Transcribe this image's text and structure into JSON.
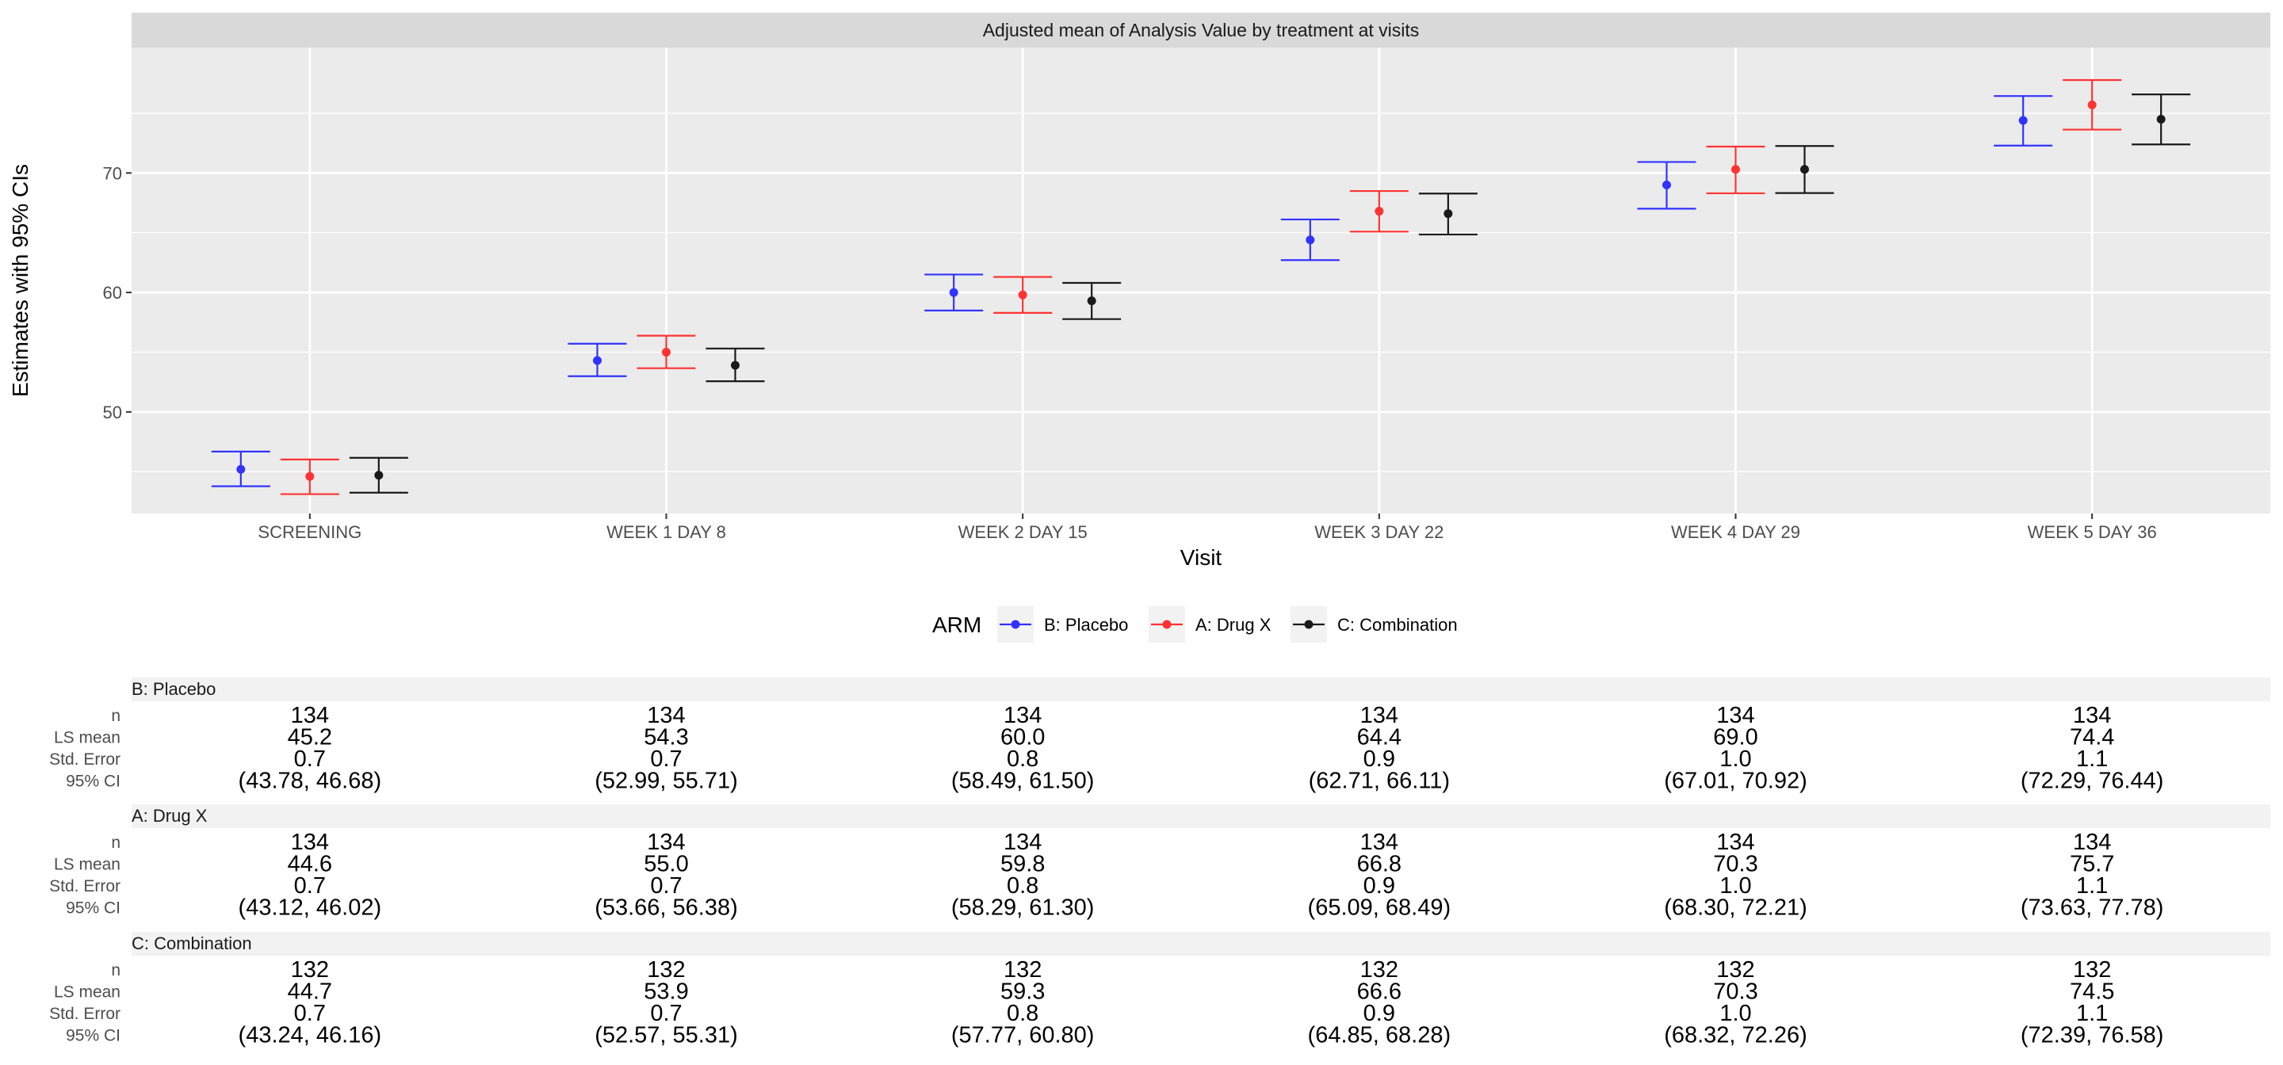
{
  "chart_data": {
    "type": "scatter",
    "title": "Adjusted mean of Analysis Value by treatment at visits",
    "xlabel": "Visit",
    "ylabel": "Estimates with 95% CIs",
    "categories": [
      "SCREENING",
      "WEEK 1 DAY 8",
      "WEEK 2 DAY 15",
      "WEEK 3 DAY 22",
      "WEEK 4 DAY 29",
      "WEEK 5 DAY 36"
    ],
    "ylim": [
      41.5,
      80.5
    ],
    "yticks": [
      50,
      60,
      70
    ],
    "grid": true,
    "legend": {
      "title": "ARM",
      "placement": "bottom"
    },
    "series": [
      {
        "name": "B: Placebo",
        "color": "#3333ff",
        "values": [
          45.2,
          54.3,
          60.0,
          64.4,
          69.0,
          74.4
        ],
        "lower": [
          43.78,
          52.99,
          58.49,
          62.71,
          67.01,
          72.29
        ],
        "upper": [
          46.68,
          55.71,
          61.5,
          66.11,
          70.92,
          76.44
        ]
      },
      {
        "name": "A: Drug X",
        "color": "#ff3333",
        "values": [
          44.6,
          55.0,
          59.8,
          66.8,
          70.3,
          75.7
        ],
        "lower": [
          43.12,
          53.66,
          58.29,
          65.09,
          68.3,
          73.63
        ],
        "upper": [
          46.02,
          56.38,
          61.3,
          68.49,
          72.21,
          77.78
        ]
      },
      {
        "name": "C: Combination",
        "color": "#1a1a1a",
        "values": [
          44.7,
          53.9,
          59.3,
          66.6,
          70.3,
          74.5
        ],
        "lower": [
          43.24,
          52.57,
          57.77,
          64.85,
          68.32,
          72.39
        ],
        "upper": [
          46.16,
          55.31,
          60.8,
          68.28,
          72.26,
          76.58
        ]
      }
    ]
  },
  "table": {
    "row_labels": [
      "n",
      "LS mean",
      "Std. Error",
      "95% CI"
    ],
    "groups": [
      {
        "name": "B: Placebo",
        "n": [
          "134",
          "134",
          "134",
          "134",
          "134",
          "134"
        ],
        "ls_mean": [
          "45.2",
          "54.3",
          "60.0",
          "64.4",
          "69.0",
          "74.4"
        ],
        "std_error": [
          "0.7",
          "0.7",
          "0.8",
          "0.9",
          "1.0",
          "1.1"
        ],
        "ci": [
          "(43.78, 46.68)",
          "(52.99, 55.71)",
          "(58.49, 61.50)",
          "(62.71, 66.11)",
          "(67.01, 70.92)",
          "(72.29, 76.44)"
        ]
      },
      {
        "name": "A: Drug X",
        "n": [
          "134",
          "134",
          "134",
          "134",
          "134",
          "134"
        ],
        "ls_mean": [
          "44.6",
          "55.0",
          "59.8",
          "66.8",
          "70.3",
          "75.7"
        ],
        "std_error": [
          "0.7",
          "0.7",
          "0.8",
          "0.9",
          "1.0",
          "1.1"
        ],
        "ci": [
          "(43.12, 46.02)",
          "(53.66, 56.38)",
          "(58.29, 61.30)",
          "(65.09, 68.49)",
          "(68.30, 72.21)",
          "(73.63, 77.78)"
        ]
      },
      {
        "name": "C: Combination",
        "n": [
          "132",
          "132",
          "132",
          "132",
          "132",
          "132"
        ],
        "ls_mean": [
          "44.7",
          "53.9",
          "59.3",
          "66.6",
          "70.3",
          "74.5"
        ],
        "std_error": [
          "0.7",
          "0.7",
          "0.8",
          "0.9",
          "1.0",
          "1.1"
        ],
        "ci": [
          "(43.24, 46.16)",
          "(52.57, 55.31)",
          "(57.77, 60.80)",
          "(64.85, 68.28)",
          "(68.32, 72.26)",
          "(72.39, 76.58)"
        ]
      }
    ]
  }
}
